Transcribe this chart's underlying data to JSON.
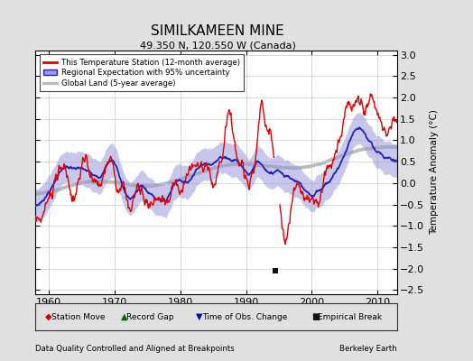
{
  "title": "SIMILKAMEEN MINE",
  "subtitle": "49.350 N, 120.550 W (Canada)",
  "footer_left": "Data Quality Controlled and Aligned at Breakpoints",
  "footer_right": "Berkeley Earth",
  "ylabel": "Temperature Anomaly (°C)",
  "xlim": [
    1958,
    2013
  ],
  "ylim": [
    -2.6,
    3.1
  ],
  "yticks": [
    -2.5,
    -2,
    -1.5,
    -1,
    -0.5,
    0,
    0.5,
    1,
    1.5,
    2,
    2.5,
    3
  ],
  "xticks": [
    1960,
    1970,
    1980,
    1990,
    2000,
    2010
  ],
  "bg_color": "#e0e0e0",
  "plot_bg_color": "#ffffff",
  "station_color": "#dd0000",
  "regional_color": "#2222bb",
  "regional_fill_color": "#9999dd",
  "global_color": "#bbbbbb",
  "marker_colors": {
    "station_move": "#cc0000",
    "record_gap": "#006600",
    "obs_change": "#0000cc",
    "empirical_break": "#111111"
  },
  "empirical_break_year": 1994.5
}
